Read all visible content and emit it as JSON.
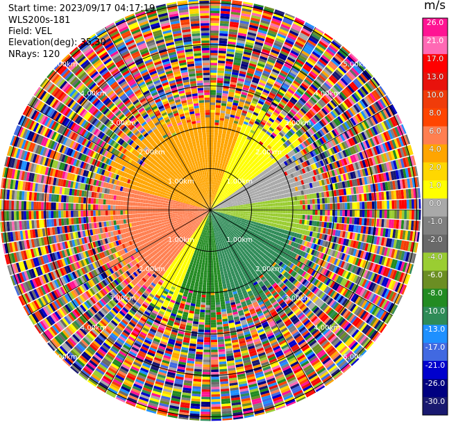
{
  "header": {
    "start_time": "Start time: 2023/09/17 04:17:19",
    "instrument": "WLS200s-181",
    "field": "Field: VEL",
    "elevation": "Elevation(deg): 35.30",
    "nrays": "NRays: 120"
  },
  "chart_data": {
    "type": "heatmap",
    "projection": "polar (PPI radar scan)",
    "field": "VEL",
    "nrays": 120,
    "elevation_deg": 35.3,
    "range_rings_km": [
      1.0,
      2.0,
      3.0,
      4.0,
      5.0
    ],
    "ring_label_text": [
      "1.00km",
      "2.00km",
      "3.00km",
      "4.00km",
      "5.00km"
    ],
    "azimuth_spokes_deg": [
      0,
      30,
      60,
      90,
      120,
      150,
      180,
      210,
      240,
      270,
      300,
      330
    ],
    "colorbar": {
      "unit": "m/s",
      "labels": [
        "26.0",
        "21.0",
        "17.0",
        "13.0",
        "10.0",
        "8.0",
        "6.0",
        "4.0",
        "2.0",
        "1.0",
        "0.0",
        "-1.0",
        "-2.0",
        "-4.0",
        "-6.0",
        "-8.0",
        "-10.0",
        "-13.0",
        "-17.0",
        "-21.0",
        "-26.0",
        "-30.0"
      ],
      "colors": [
        "#ff1493",
        "#ff69b4",
        "#ff0000",
        "#e8120c",
        "#f03c0a",
        "#ff4500",
        "#ff7f50",
        "#ffa500",
        "#ffd700",
        "#ffff00",
        "#a9a9a9",
        "#808080",
        "#696969",
        "#9acd32",
        "#6b8e23",
        "#228b22",
        "#2e8b57",
        "#1e90ff",
        "#4169e1",
        "#0000cd",
        "#000080",
        "#191970"
      ]
    },
    "inner_velocity_pattern": [
      {
        "azimuth_deg": [
          215,
          285
        ],
        "color": "#ff7f50"
      },
      {
        "azimuth_deg": [
          285,
          330
        ],
        "color": "#ffa500"
      },
      {
        "azimuth_deg": [
          330,
          20
        ],
        "color": "#ffa500"
      },
      {
        "azimuth_deg": [
          20,
          55
        ],
        "color": "#ffff00"
      },
      {
        "azimuth_deg": [
          55,
          80
        ],
        "color": "#a9a9a9"
      },
      {
        "azimuth_deg": [
          80,
          105
        ],
        "color": "#9acd32"
      },
      {
        "azimuth_deg": [
          105,
          170
        ],
        "color": "#2e8b57"
      },
      {
        "azimuth_deg": [
          170,
          200
        ],
        "color": "#228b22"
      },
      {
        "azimuth_deg": [
          200,
          215
        ],
        "color": "#ffff00"
      }
    ]
  }
}
